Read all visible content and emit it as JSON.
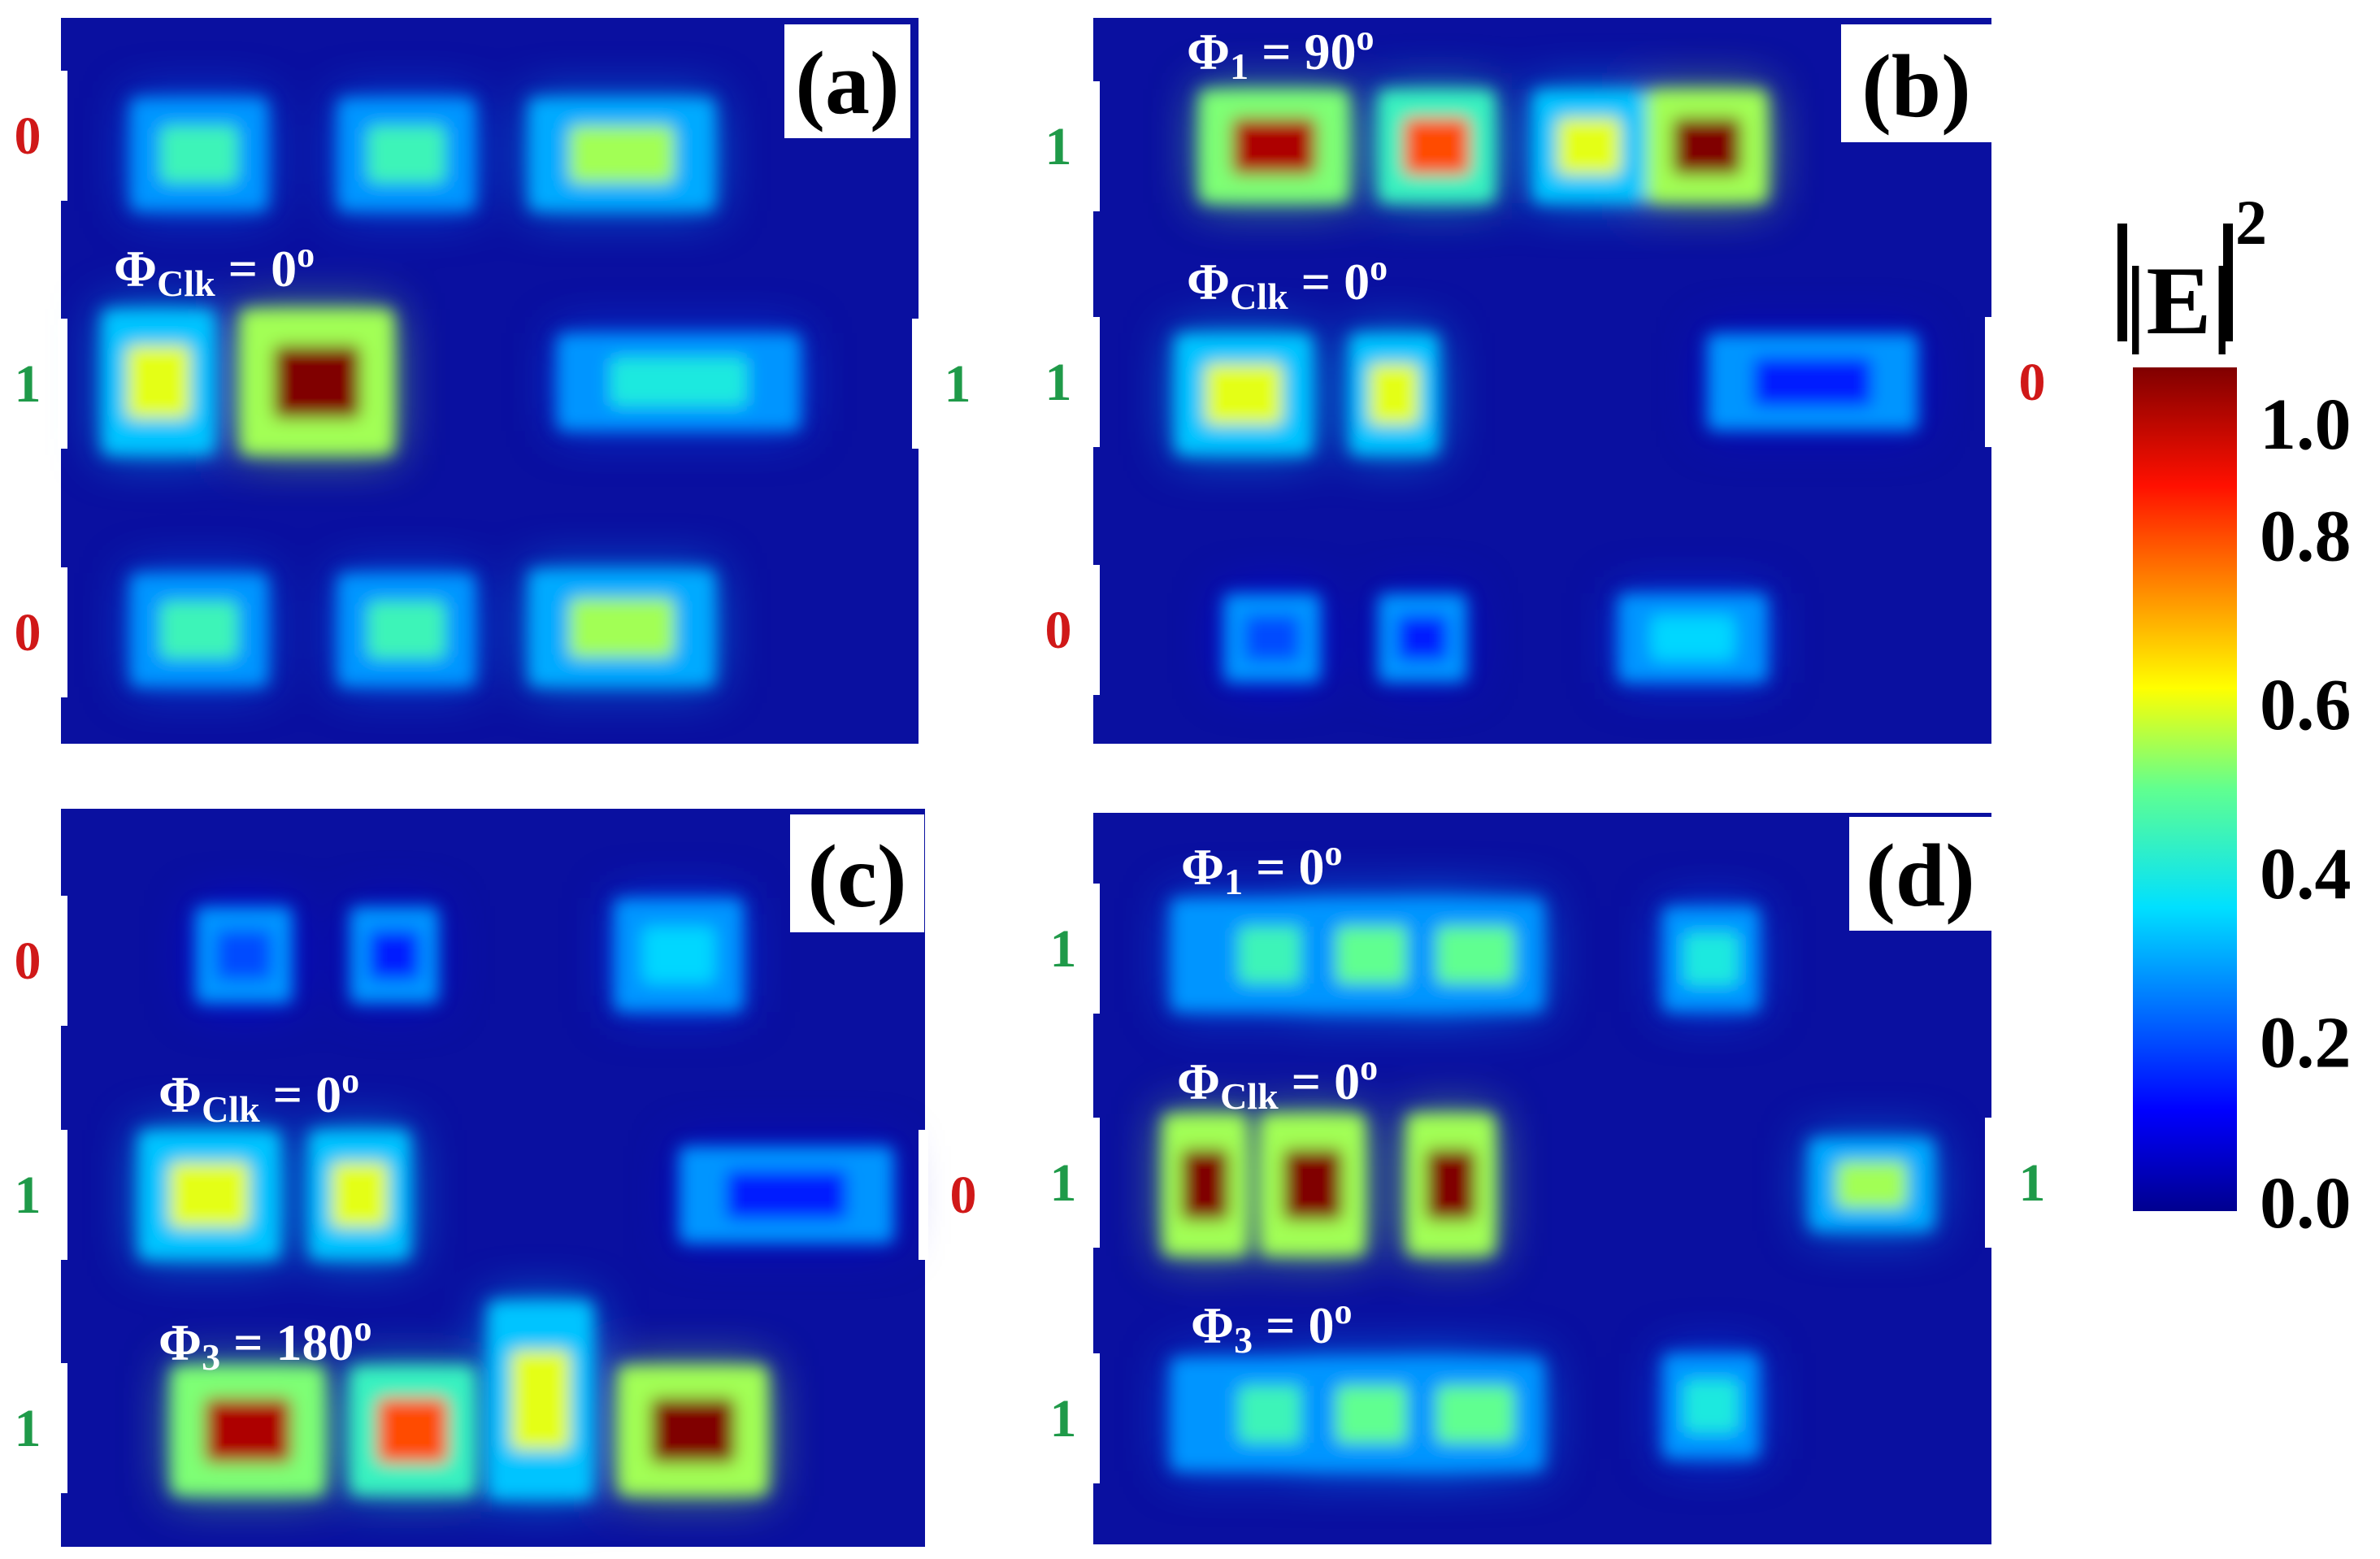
{
  "chart_data": {
    "type": "heatmap",
    "colorbar": {
      "title": "|E|",
      "title_sup": "2",
      "ticks": [
        "1.0",
        "0.8",
        "0.6",
        "0.4",
        "0.2",
        "0.0"
      ],
      "range": [
        0,
        1.0
      ]
    },
    "panels": [
      {
        "tag": "(a)",
        "inputs": [
          "0",
          "1",
          "0"
        ],
        "output": "1",
        "phases": [
          {
            "symbol": "Φ",
            "sub": "Clk",
            "value": " = 0",
            "unit": "o"
          }
        ],
        "blocks": [
          {
            "row": 0,
            "col": 0,
            "intensity": 0.45
          },
          {
            "row": 0,
            "col": 1,
            "intensity": 0.45
          },
          {
            "row": 0,
            "col": 2,
            "intensity": 0.55
          },
          {
            "row": 1,
            "col": 0,
            "intensity": 0.6
          },
          {
            "row": 1,
            "col": 1,
            "intensity": 1.0
          },
          {
            "row": 1,
            "col": 2,
            "intensity": 0.4
          },
          {
            "row": 2,
            "col": 0,
            "intensity": 0.45
          },
          {
            "row": 2,
            "col": 1,
            "intensity": 0.45
          },
          {
            "row": 2,
            "col": 2,
            "intensity": 0.55
          }
        ]
      },
      {
        "tag": "(b)",
        "inputs": [
          "1",
          "1",
          "0"
        ],
        "output": "0",
        "phases": [
          {
            "symbol": "Φ",
            "sub": "1",
            "value": " = 90",
            "unit": "o"
          },
          {
            "symbol": "Φ",
            "sub": "Clk",
            "value": " = 0",
            "unit": "o"
          }
        ],
        "blocks": [
          {
            "row": 0,
            "col": 0,
            "intensity": 0.95
          },
          {
            "row": 0,
            "col": 1,
            "intensity": 0.8
          },
          {
            "row": 0,
            "col": 2,
            "intensity": 0.6
          },
          {
            "row": 0,
            "col": 3,
            "intensity": 1.0
          },
          {
            "row": 1,
            "col": 0,
            "intensity": 0.6
          },
          {
            "row": 1,
            "col": 1,
            "intensity": 0.6
          },
          {
            "row": 1,
            "col": 3,
            "intensity": 0.15
          },
          {
            "row": 2,
            "col": 0,
            "intensity": 0.2
          },
          {
            "row": 2,
            "col": 1,
            "intensity": 0.15
          },
          {
            "row": 2,
            "col": 3,
            "intensity": 0.35
          }
        ]
      },
      {
        "tag": "(c)",
        "inputs": [
          "0",
          "1",
          "1"
        ],
        "output": "0",
        "phases": [
          {
            "symbol": "Φ",
            "sub": "Clk",
            "value": " = 0",
            "unit": "o"
          },
          {
            "symbol": "Φ",
            "sub": "3",
            "value": " = 180",
            "unit": "o"
          }
        ],
        "blocks": [
          {
            "row": 0,
            "col": 0,
            "intensity": 0.2
          },
          {
            "row": 0,
            "col": 1,
            "intensity": 0.15
          },
          {
            "row": 0,
            "col": 3,
            "intensity": 0.35
          },
          {
            "row": 1,
            "col": 0,
            "intensity": 0.6
          },
          {
            "row": 1,
            "col": 1,
            "intensity": 0.6
          },
          {
            "row": 1,
            "col": 3,
            "intensity": 0.15
          },
          {
            "row": 2,
            "col": 0,
            "intensity": 0.95
          },
          {
            "row": 2,
            "col": 1,
            "intensity": 0.8
          },
          {
            "row": 2,
            "col": 2,
            "intensity": 0.6
          },
          {
            "row": 2,
            "col": 3,
            "intensity": 1.0
          }
        ]
      },
      {
        "tag": "(d)",
        "inputs": [
          "1",
          "1",
          "1"
        ],
        "output": "1",
        "phases": [
          {
            "symbol": "Φ",
            "sub": "1",
            "value": " = 0",
            "unit": "o"
          },
          {
            "symbol": "Φ",
            "sub": "Clk",
            "value": " = 0",
            "unit": "o"
          },
          {
            "symbol": "Φ",
            "sub": "3",
            "value": " = 0",
            "unit": "o"
          }
        ],
        "blocks": [
          {
            "row": 0,
            "col": 0,
            "intensity": 0.45
          },
          {
            "row": 0,
            "col": 1,
            "intensity": 0.5
          },
          {
            "row": 0,
            "col": 2,
            "intensity": 0.5
          },
          {
            "row": 0,
            "col": 3,
            "intensity": 0.4
          },
          {
            "row": 1,
            "col": 0,
            "intensity": 1.0
          },
          {
            "row": 1,
            "col": 1,
            "intensity": 1.0
          },
          {
            "row": 1,
            "col": 2,
            "intensity": 1.0
          },
          {
            "row": 1,
            "col": 3,
            "intensity": 0.55
          },
          {
            "row": 2,
            "col": 0,
            "intensity": 0.45
          },
          {
            "row": 2,
            "col": 1,
            "intensity": 0.5
          },
          {
            "row": 2,
            "col": 2,
            "intensity": 0.5
          },
          {
            "row": 2,
            "col": 3,
            "intensity": 0.4
          }
        ]
      }
    ]
  }
}
